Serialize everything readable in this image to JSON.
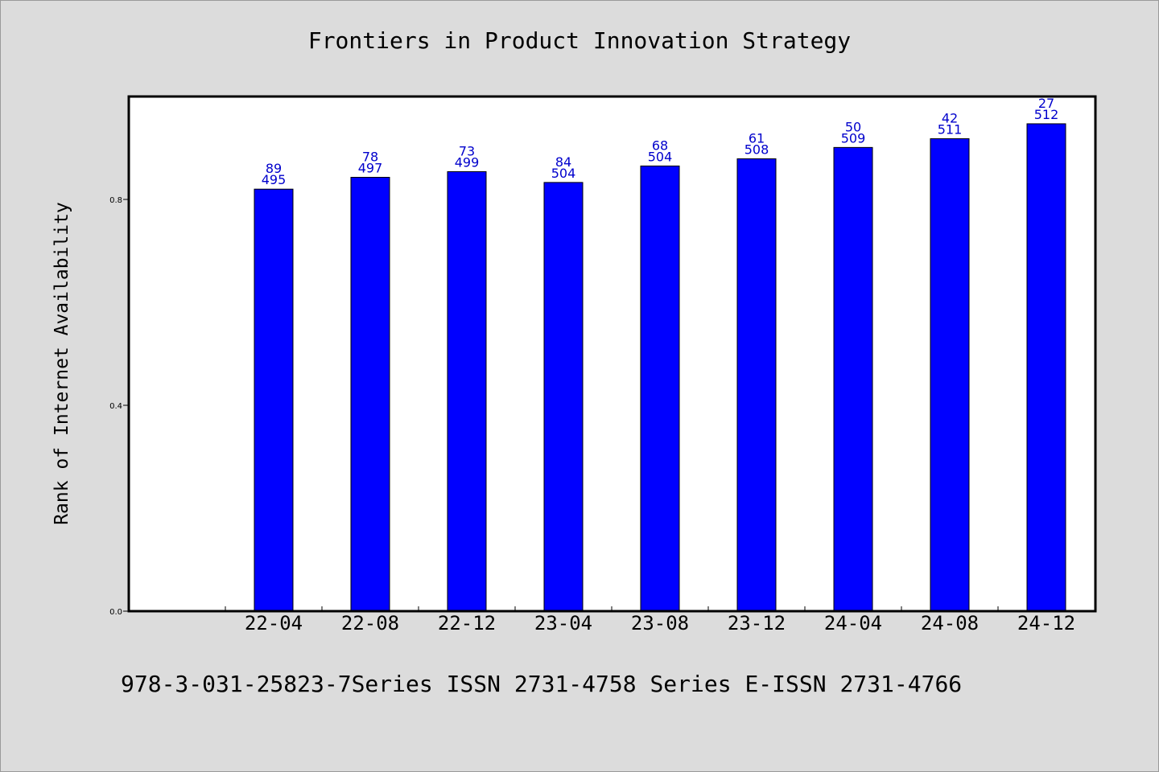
{
  "chart_data": {
    "type": "bar",
    "title": "Frontiers in Product Innovation Strategy",
    "xlabel": "",
    "ylabel": "Rank of Internet Availability",
    "categories": [
      "22-04",
      "22-08",
      "22-12",
      "23-04",
      "23-08",
      "23-12",
      "24-04",
      "24-08",
      "24-12"
    ],
    "values": [
      0.82,
      0.843,
      0.854,
      0.833,
      0.865,
      0.879,
      0.901,
      0.918,
      0.947
    ],
    "label_top": [
      "89",
      "78",
      "73",
      "84",
      "68",
      "61",
      "50",
      "42",
      "27"
    ],
    "label_bottom": [
      "495",
      "497",
      "499",
      "504",
      "504",
      "508",
      "509",
      "511",
      "512"
    ],
    "yticks": [
      "0.0",
      "0.4",
      "0.8"
    ],
    "ytick_values": [
      0,
      0.4,
      0.8
    ],
    "ylim": [
      0,
      1.0
    ],
    "bar_color": "#0000ff",
    "label_color": "#0000cc",
    "grid": false,
    "legend": "none"
  },
  "footer": "978-3-031-25823-7Series ISSN 2731-4758 Series E-ISSN 2731-4766",
  "colors": {
    "background": "#dcdcdc",
    "plot_background": "#ffffff"
  }
}
